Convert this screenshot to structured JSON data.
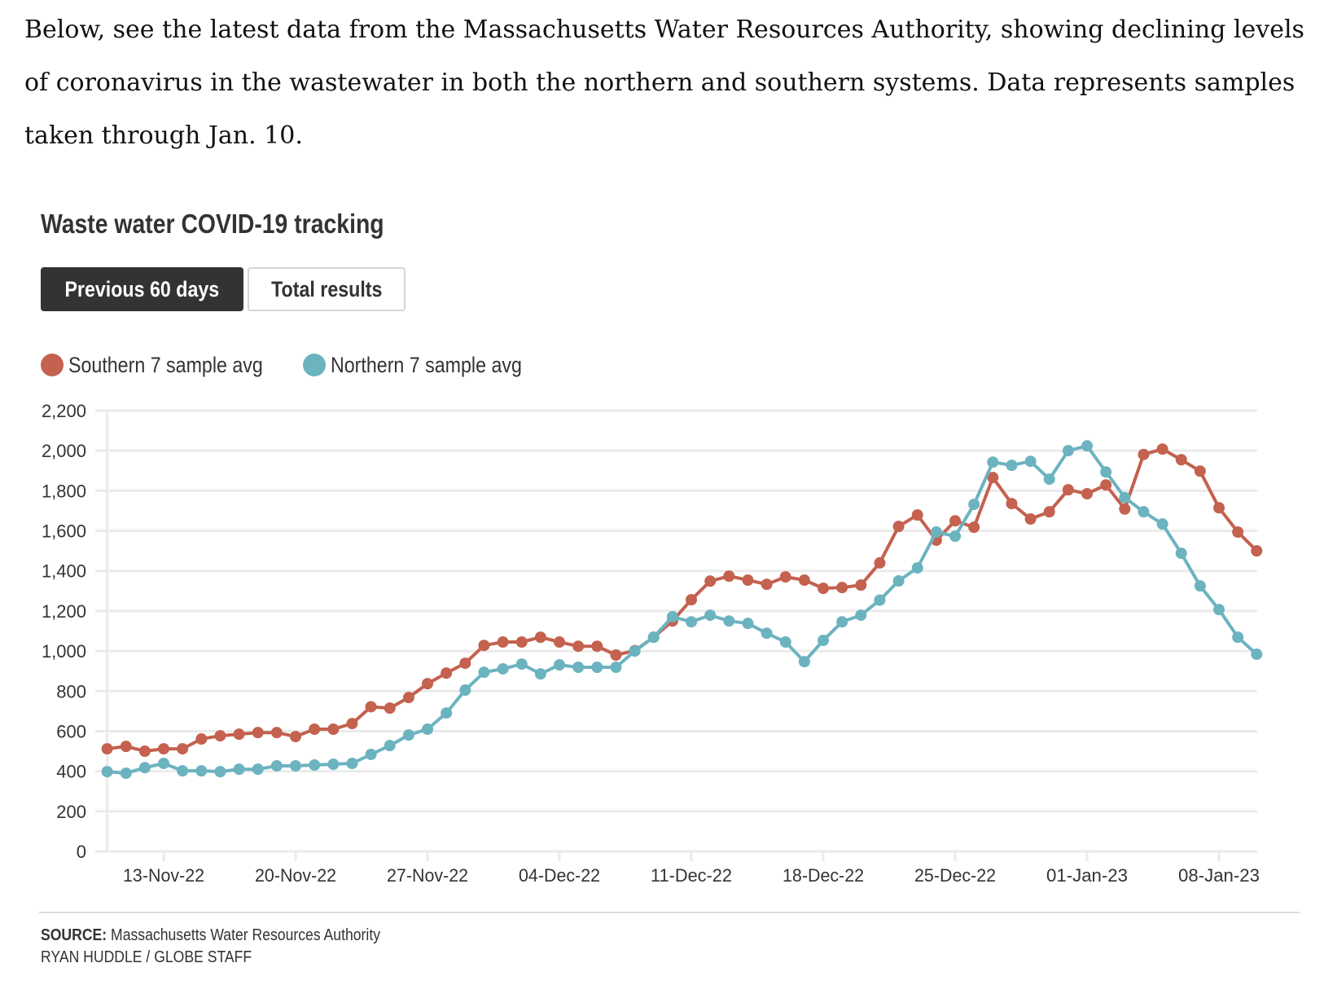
{
  "article": {
    "intro": "Below, see the latest data from the Massachusetts Water Resources Authority, showing declining levels of coronavirus in the wastewater in both the northern and southern systems. Data represents samples taken through Jan. 10."
  },
  "widget": {
    "title": "Waste water COVID-19 tracking",
    "buttons": [
      {
        "label": "Previous 60 days",
        "active": true
      },
      {
        "label": "Total results",
        "active": false
      }
    ],
    "source_label": "SOURCE:",
    "source_text": "Massachusetts Water Resources Authority",
    "credit": "RYAN HUDDLE / GLOBE STAFF"
  },
  "colors": {
    "southern": "#c4614f",
    "northern": "#6cb3c0",
    "grid": "#ebebeb",
    "text": "#333333"
  },
  "chart_data": {
    "type": "line",
    "title": "Waste water COVID-19 tracking",
    "xlabel": "",
    "ylabel": "",
    "x_start": "10-Nov-22",
    "x_end": "10-Jan-23",
    "x_count": 62,
    "ylim": [
      0,
      2200
    ],
    "yticks": [
      0,
      200,
      400,
      600,
      800,
      1000,
      1200,
      1400,
      1600,
      1800,
      2000,
      2200
    ],
    "ytick_labels": [
      "0",
      "200",
      "400",
      "600",
      "800",
      "1,000",
      "1,200",
      "1,400",
      "1,600",
      "1,800",
      "2,000",
      "2,200"
    ],
    "xticks": [
      {
        "index": 3,
        "label": "13-Nov-22"
      },
      {
        "index": 10,
        "label": "20-Nov-22"
      },
      {
        "index": 17,
        "label": "27-Nov-22"
      },
      {
        "index": 24,
        "label": "04-Dec-22"
      },
      {
        "index": 31,
        "label": "11-Dec-22"
      },
      {
        "index": 38,
        "label": "18-Dec-22"
      },
      {
        "index": 45,
        "label": "25-Dec-22"
      },
      {
        "index": 52,
        "label": "01-Jan-23"
      },
      {
        "index": 59,
        "label": "08-Jan-23"
      }
    ],
    "grid": true,
    "legend_position": "top-left",
    "series": [
      {
        "name": "Southern 7 sample avg",
        "color": "#c4614f",
        "values": [
          512,
          524,
          500,
          512,
          512,
          561,
          577,
          585,
          593,
          593,
          573,
          610,
          610,
          638,
          722,
          715,
          768,
          837,
          890,
          939,
          1028,
          1045,
          1045,
          1069,
          1045,
          1024,
          1024,
          980,
          1002,
          1069,
          1150,
          1256,
          1349,
          1374,
          1354,
          1333,
          1370,
          1354,
          1313,
          1317,
          1329,
          1440,
          1622,
          1679,
          1553,
          1650,
          1618,
          1866,
          1736,
          1659,
          1695,
          1805,
          1785,
          1829,
          1709,
          1981,
          2008,
          1955,
          1898,
          1715,
          1594,
          1500
        ]
      },
      {
        "name": "Northern 7 sample avg",
        "color": "#6cb3c0",
        "values": [
          398,
          390,
          418,
          439,
          402,
          402,
          398,
          410,
          410,
          427,
          427,
          431,
          435,
          439,
          484,
          528,
          581,
          610,
          691,
          805,
          894,
          911,
          935,
          886,
          931,
          919,
          919,
          919,
          1000,
          1069,
          1171,
          1146,
          1179,
          1150,
          1138,
          1089,
          1045,
          947,
          1053,
          1146,
          1179,
          1254,
          1350,
          1415,
          1594,
          1573,
          1732,
          1943,
          1927,
          1947,
          1858,
          2000,
          2024,
          1894,
          1766,
          1695,
          1634,
          1488,
          1325,
          1207,
          1069,
          984
        ]
      }
    ]
  }
}
